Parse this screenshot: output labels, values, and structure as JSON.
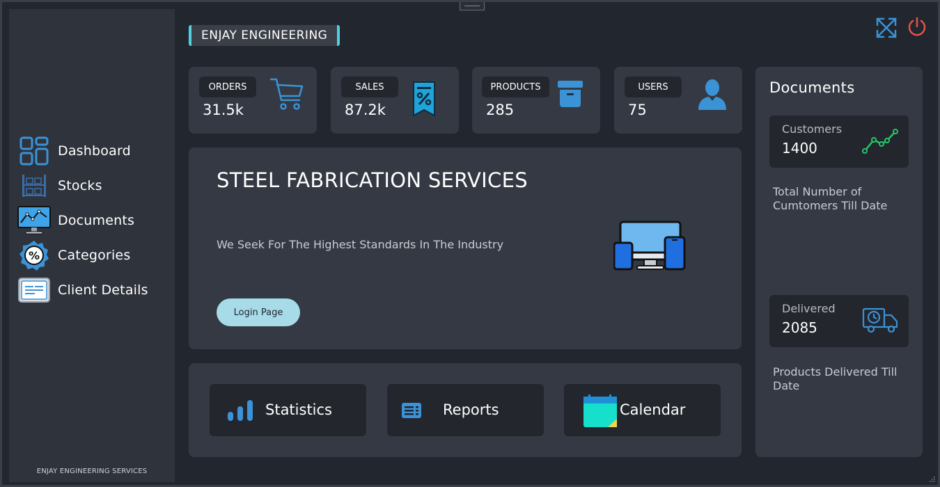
{
  "brand": {
    "title": "ENJAY ENGINEERING"
  },
  "sidebar": {
    "items": [
      {
        "label": "Dashboard",
        "icon": "dashboard-grid-icon"
      },
      {
        "label": "Stocks",
        "icon": "warehouse-shelves-icon"
      },
      {
        "label": "Documents",
        "icon": "monitor-chart-icon"
      },
      {
        "label": "Categories",
        "icon": "percent-badge-icon"
      },
      {
        "label": "Client Details",
        "icon": "id-card-icon"
      }
    ],
    "footer": "ENJAY ENGINEERING SERVICES"
  },
  "window_controls": {
    "maximize_icon": "expand-arrows-icon",
    "power_icon": "power-icon"
  },
  "stats": [
    {
      "label": "ORDERS",
      "value": "31.5k",
      "icon": "cart-icon"
    },
    {
      "label": "SALES",
      "value": "87.2k",
      "icon": "discount-tag-icon"
    },
    {
      "label": "PRODUCTS",
      "value": "285",
      "icon": "archive-box-icon"
    },
    {
      "label": "USERS",
      "value": "75",
      "icon": "user-icon"
    }
  ],
  "hero": {
    "title": "STEEL FABRICATION SERVICES",
    "subtitle": "We Seek For The Highest Standards In The Industry",
    "button": "Login Page"
  },
  "tools": [
    {
      "label": "Statistics",
      "icon": "bar-chart-icon"
    },
    {
      "label": "Reports",
      "icon": "report-list-icon"
    },
    {
      "label": "Calendar",
      "icon": "calendar-icon"
    }
  ],
  "documents": {
    "title": "Documents",
    "cards": [
      {
        "label": "Customers",
        "value": "1400",
        "icon": "line-trend-icon",
        "description": "Total Number of Cumtomers Till Date"
      },
      {
        "label": "Delivered",
        "value": "2085",
        "icon": "delivery-truck-icon",
        "description": "Products Delivered Till Date"
      }
    ]
  },
  "colors": {
    "accent": "#4fd1e0",
    "icon_blue": "#3b93d6",
    "power_red": "#e5534b",
    "trend_green": "#27c46a",
    "button_bg": "#a8dbe8"
  }
}
